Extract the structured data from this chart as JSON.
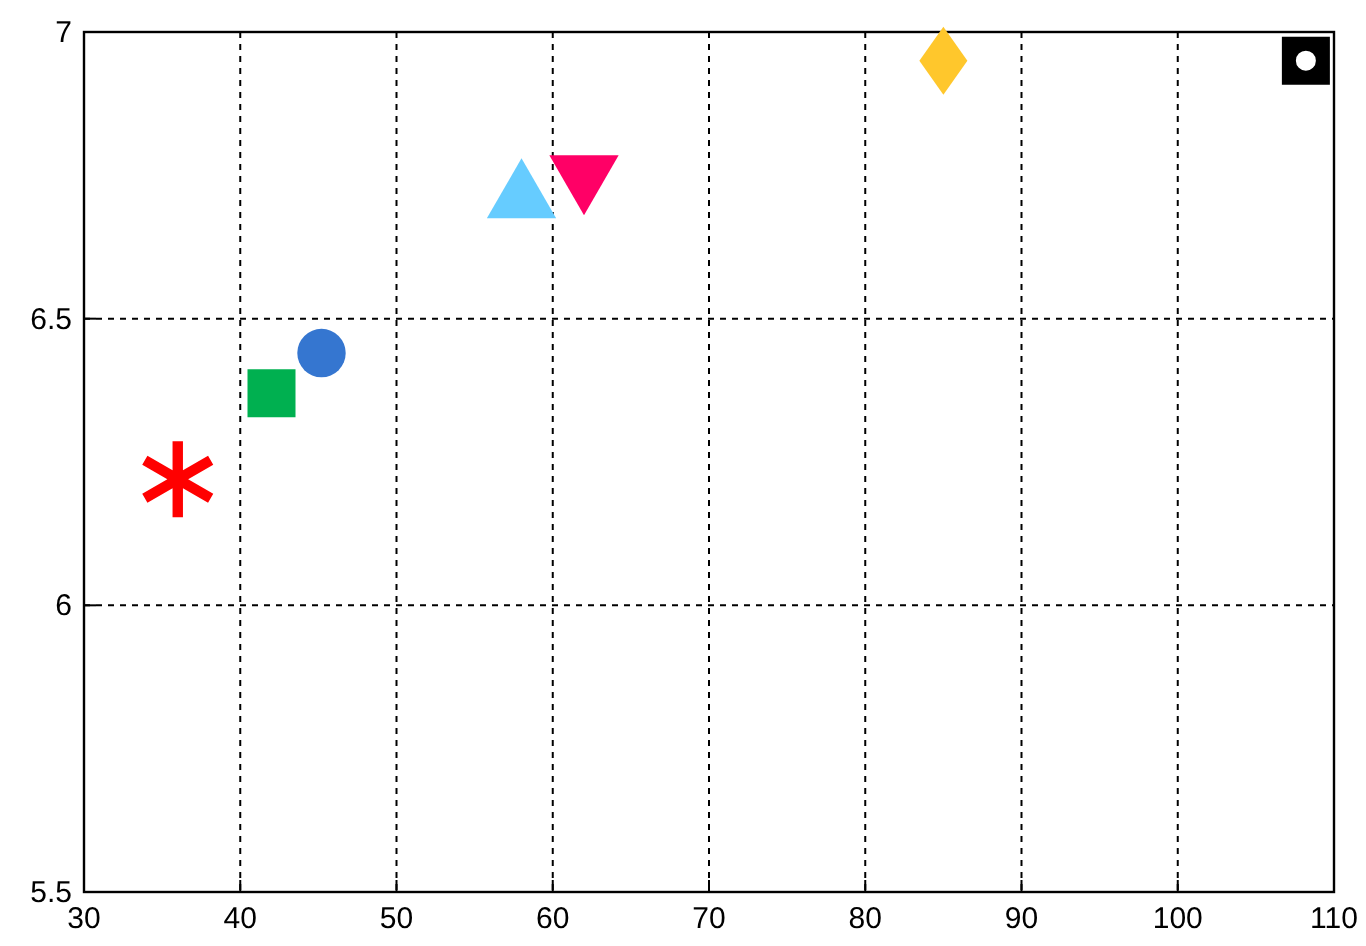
{
  "chart_data": {
    "type": "scatter",
    "xlim": [
      30,
      110
    ],
    "ylim": [
      5.5,
      7
    ],
    "xticks": [
      30,
      40,
      50,
      60,
      70,
      80,
      90,
      100,
      110
    ],
    "yticks": [
      5.5,
      6,
      6.5,
      7
    ],
    "grid": true,
    "series": [
      {
        "x": [
          36
        ],
        "values": [
          6.22
        ],
        "color": "#ff0000",
        "marker": "star"
      },
      {
        "x": [
          42
        ],
        "values": [
          6.37
        ],
        "color": "#00b050",
        "marker": "square"
      },
      {
        "x": [
          45.2
        ],
        "values": [
          6.44
        ],
        "color": "#3576d0",
        "marker": "circle"
      },
      {
        "x": [
          58
        ],
        "values": [
          6.71
        ],
        "color": "#66ccff",
        "marker": "triangle"
      },
      {
        "x": [
          62
        ],
        "values": [
          6.75
        ],
        "color": "#ff0066",
        "marker": "triangle-down"
      },
      {
        "x": [
          85
        ],
        "values": [
          6.95
        ],
        "color": "#ffc72c",
        "marker": "diamond"
      },
      {
        "x": [
          108.2
        ],
        "values": [
          6.95
        ],
        "color": "#000000",
        "marker": "square-dot"
      }
    ]
  }
}
